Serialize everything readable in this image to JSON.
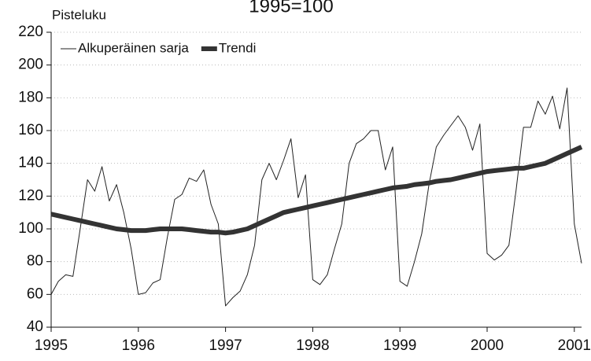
{
  "chart_data": {
    "type": "line",
    "title": "1995=100",
    "y_label": "Pisteluku",
    "x": [
      1995,
      1995.083,
      1995.167,
      1995.25,
      1995.333,
      1995.417,
      1995.5,
      1995.583,
      1995.667,
      1995.75,
      1995.833,
      1995.917,
      1996,
      1996.083,
      1996.167,
      1996.25,
      1996.333,
      1996.417,
      1996.5,
      1996.583,
      1996.667,
      1996.75,
      1996.833,
      1996.917,
      1997,
      1997.083,
      1997.167,
      1997.25,
      1997.333,
      1997.417,
      1997.5,
      1997.583,
      1997.667,
      1997.75,
      1997.833,
      1997.917,
      1998,
      1998.083,
      1998.167,
      1998.25,
      1998.333,
      1998.417,
      1998.5,
      1998.583,
      1998.667,
      1998.75,
      1998.833,
      1998.917,
      1999,
      1999.083,
      1999.167,
      1999.25,
      1999.333,
      1999.417,
      1999.5,
      1999.583,
      1999.667,
      1999.75,
      1999.833,
      1999.917,
      2000,
      2000.083,
      2000.167,
      2000.25,
      2000.333,
      2000.417,
      2000.5,
      2000.583,
      2000.667,
      2000.75,
      2000.833,
      2000.917,
      2001,
      2001.083
    ],
    "series": [
      {
        "name": "Alkuperäinen sarja",
        "color": "#222222",
        "width": 1,
        "values": [
          60,
          68,
          72,
          71,
          100,
          130,
          123,
          138,
          117,
          127,
          110,
          88,
          60,
          61,
          67,
          69,
          95,
          118,
          121,
          131,
          129,
          136,
          115,
          103,
          53,
          58,
          62,
          72,
          90,
          130,
          140,
          130,
          142,
          155,
          119,
          133,
          69,
          66,
          72,
          88,
          103,
          140,
          152,
          155,
          160,
          160,
          136,
          150,
          68,
          65,
          80,
          97,
          127,
          150,
          157,
          163,
          169,
          162,
          148,
          164,
          85,
          81,
          84,
          90,
          124,
          162,
          162,
          178,
          170,
          181,
          161,
          186,
          103,
          79
        ]
      },
      {
        "name": "Trendi",
        "color": "#333333",
        "width": 6,
        "values": [
          109,
          108,
          107,
          106,
          105,
          104,
          103,
          102,
          101,
          100,
          99.5,
          99,
          99,
          99,
          99.5,
          100,
          100,
          100,
          100,
          99.5,
          99,
          98.5,
          98,
          98,
          97.5,
          98,
          99,
          100,
          102,
          104,
          106,
          108,
          110,
          111,
          112,
          113,
          114,
          115,
          116,
          117,
          118,
          119,
          120,
          121,
          122,
          123,
          124,
          125,
          125.5,
          126,
          127,
          127.5,
          128,
          129,
          129.5,
          130,
          131,
          132,
          133,
          134,
          135,
          135.5,
          136,
          136.5,
          137,
          137,
          138,
          139,
          140,
          142,
          144,
          146,
          148,
          150
        ]
      }
    ],
    "xlim": [
      1995,
      2001.083
    ],
    "xticks": [
      1995,
      1996,
      1997,
      1998,
      1999,
      2000,
      2001
    ],
    "ylim": [
      40,
      220
    ],
    "yticks": [
      40,
      60,
      80,
      100,
      120,
      140,
      160,
      180,
      200,
      220
    ],
    "grid": true,
    "legend": "top-left"
  }
}
